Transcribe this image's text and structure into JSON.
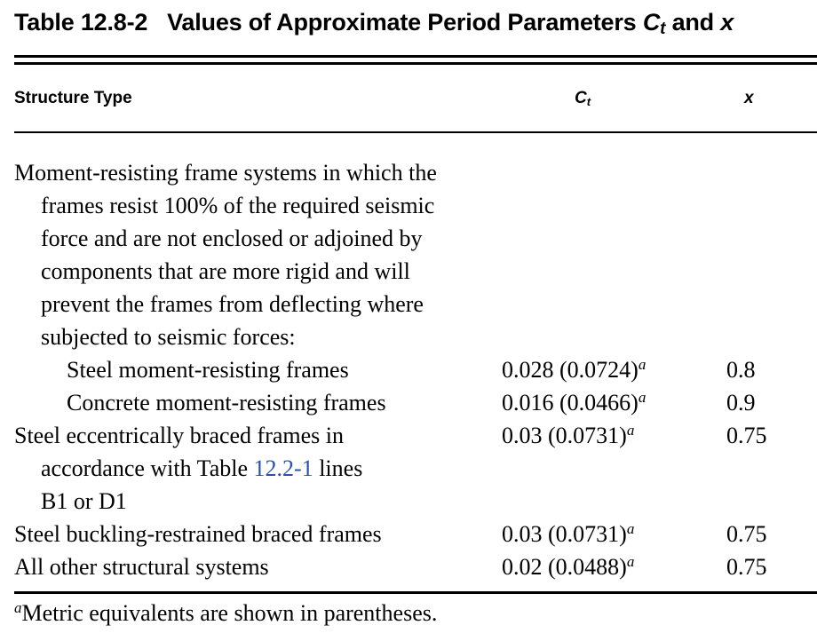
{
  "table": {
    "number": "Table 12.8-2",
    "title_text": "Values of Approximate Period Parameters",
    "ct_symbol": "C",
    "ct_subscript": "t",
    "and_text": "and",
    "x_symbol": "x"
  },
  "headers": {
    "structure_type": "Structure Type",
    "ct_symbol": "C",
    "ct_subscript": "t",
    "x": "x"
  },
  "rows": [
    {
      "lines": [
        "Moment-resisting frame systems in which the",
        "frames resist 100% of the required seismic",
        "force and are not enclosed or adjoined by",
        "components that are more rigid and will",
        "prevent the frames from deflecting where",
        "subjected to seismic forces:"
      ],
      "ct": "",
      "ct_note": "",
      "x": ""
    },
    {
      "lines": [
        "Steel moment-resisting frames"
      ],
      "ct": "0.028 (0.0724)",
      "ct_note": "a",
      "x": "0.8"
    },
    {
      "lines": [
        "Concrete moment-resisting frames"
      ],
      "ct": "0.016 (0.0466)",
      "ct_note": "a",
      "x": "0.9"
    },
    {
      "lines": [
        "Steel eccentrically braced frames in",
        "accordance with Table",
        "B1 or D1"
      ],
      "link_text": "12.2-1",
      "link_suffix": " lines",
      "ct": "0.03 (0.0731)",
      "ct_note": "a",
      "x": "0.75"
    },
    {
      "lines": [
        "Steel buckling-restrained braced frames"
      ],
      "ct": "0.03 (0.0731)",
      "ct_note": "a",
      "x": "0.75"
    },
    {
      "lines": [
        "All other structural systems"
      ],
      "ct": "0.02 (0.0488)",
      "ct_note": "a",
      "x": "0.75"
    }
  ],
  "footnote": {
    "marker": "a",
    "text": "Metric equivalents are shown in parentheses."
  }
}
